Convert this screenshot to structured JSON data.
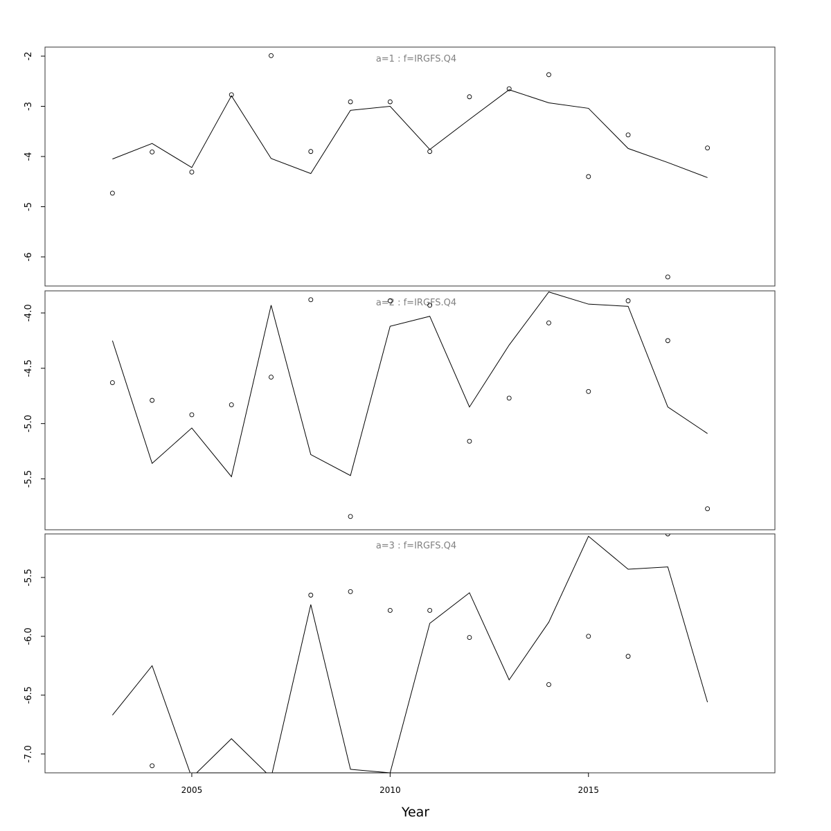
{
  "chart_data": {
    "type": "line",
    "xlabel": "Year",
    "xlim": [
      2001.3,
      2019.7
    ],
    "x_ticks": [
      2005,
      2010,
      2015
    ],
    "x": [
      2003,
      2004,
      2005,
      2006,
      2007,
      2008,
      2009,
      2010,
      2011,
      2012,
      2013,
      2014,
      2015,
      2016,
      2017,
      2018
    ],
    "panels": [
      {
        "title": "a=1  :  f=IRGFS.Q4",
        "ylim": [
          -6.58,
          -1.82
        ],
        "y_ticks": [
          -2,
          -3,
          -4,
          -5,
          -6
        ],
        "y_tick_labels": [
          "-2",
          "-3",
          "-4",
          "-5",
          "-6"
        ],
        "series": [
          {
            "type": "line",
            "values": [
              -4.05,
              -3.74,
              -4.22,
              -2.79,
              -4.04,
              -4.34,
              -3.08,
              -3.0,
              -3.86,
              -3.26,
              -2.67,
              -2.93,
              -3.04,
              -3.84,
              -4.12,
              -4.42
            ]
          },
          {
            "type": "scatter",
            "values": [
              -4.73,
              -3.91,
              -4.31,
              -2.77,
              -1.99,
              -3.9,
              -2.91,
              -2.91,
              -3.9,
              -2.81,
              -2.65,
              -2.37,
              -4.4,
              -3.57,
              -6.4,
              -3.83
            ]
          }
        ]
      },
      {
        "title": "a=2  :  f=IRGFS.Q4",
        "ylim": [
          -5.96,
          -3.8
        ],
        "y_ticks": [
          -4.0,
          -4.5,
          -5.0,
          -5.5
        ],
        "y_tick_labels": [
          "-4.0",
          "-4.5",
          "-5.0",
          "-5.5"
        ],
        "series": [
          {
            "type": "line",
            "values": [
              -4.25,
              -5.36,
              -5.04,
              -5.48,
              -3.93,
              -5.28,
              -5.47,
              -4.12,
              -4.03,
              -4.85,
              -4.29,
              -3.81,
              -3.92,
              -3.94,
              -4.85,
              -5.09
            ]
          },
          {
            "type": "scatter",
            "values": [
              -4.63,
              -4.79,
              -4.92,
              -4.83,
              -4.58,
              -3.88,
              -5.84,
              -3.89,
              -3.93,
              -5.16,
              -4.77,
              -4.09,
              -4.71,
              -3.89,
              -4.25,
              -5.77
            ]
          }
        ]
      },
      {
        "title": "a=3  :  f=IRGFS.Q4",
        "ylim": [
          -7.16,
          -5.13
        ],
        "y_ticks": [
          -5.5,
          -6.0,
          -6.5,
          -7.0
        ],
        "y_tick_labels": [
          "-5.5",
          "-6.0",
          "-6.5",
          "-7.0"
        ],
        "series": [
          {
            "type": "line",
            "values": [
              -6.67,
              -6.25,
              -7.2,
              -6.87,
              -7.2,
              -5.73,
              -7.13,
              -7.16,
              -5.89,
              -5.63,
              -6.37,
              -5.88,
              -5.15,
              -5.43,
              -5.41,
              -6.56
            ]
          },
          {
            "type": "scatter",
            "values": [
              null,
              -7.1,
              null,
              null,
              null,
              -5.65,
              -5.62,
              -5.78,
              -5.78,
              -6.01,
              null,
              -6.41,
              -6.0,
              -6.17,
              -5.13,
              null
            ]
          }
        ]
      }
    ]
  }
}
